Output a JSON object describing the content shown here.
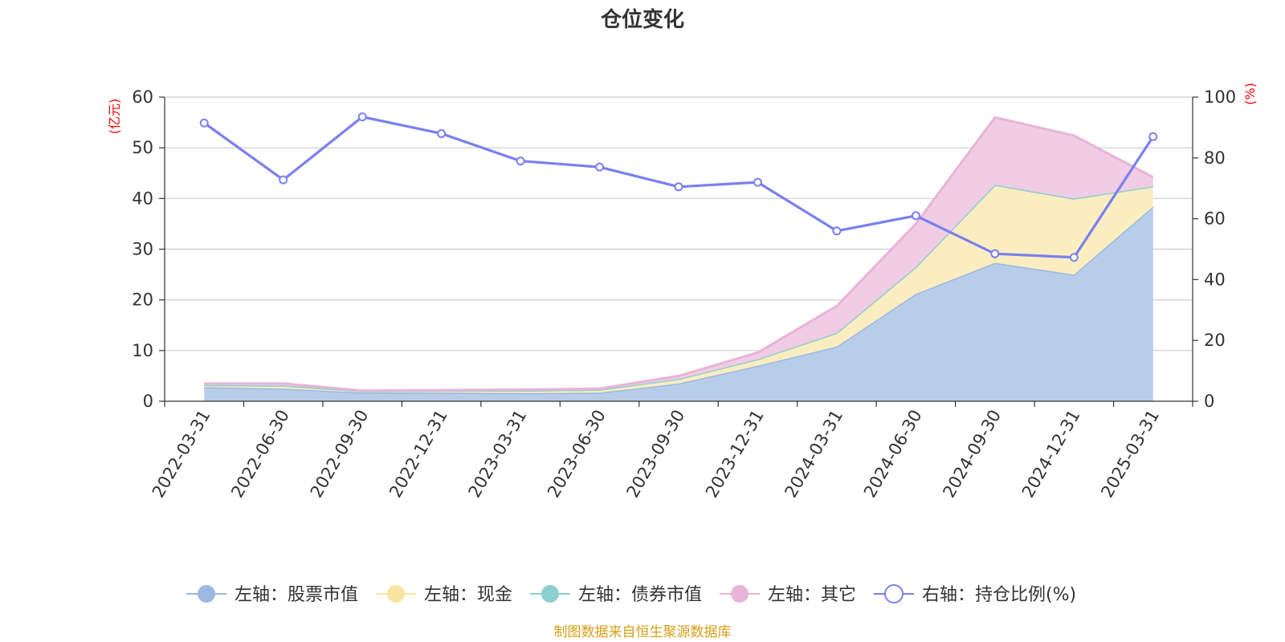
{
  "chart_data": {
    "type": "area",
    "title": "仓位变化",
    "left_unit": "(亿元)",
    "right_unit": "(%)",
    "categories": [
      "2022-03-31",
      "2022-06-30",
      "2022-09-30",
      "2022-12-31",
      "2023-03-31",
      "2023-06-30",
      "2023-09-30",
      "2023-12-31",
      "2024-03-31",
      "2024-06-30",
      "2024-09-30",
      "2024-12-31",
      "2025-03-31"
    ],
    "left_axis": {
      "min": 0,
      "max": 60,
      "ticks": [
        "0",
        "10",
        "20",
        "30",
        "40",
        "50",
        "60"
      ]
    },
    "right_axis": {
      "min": 0,
      "max": 100,
      "ticks": [
        "0",
        "20",
        "40",
        "60",
        "80",
        "100"
      ]
    },
    "series": [
      {
        "name": "左轴：股票市值",
        "key": "stock",
        "axis": "left",
        "stacked": true,
        "color": "#9db8e0",
        "fill": "#b8cdea",
        "values": [
          2.8,
          2.5,
          1.7,
          1.7,
          1.6,
          1.7,
          3.5,
          7.0,
          10.8,
          21.2,
          27.3,
          25.0,
          38.4
        ]
      },
      {
        "name": "左轴：现金",
        "key": "cash",
        "axis": "left",
        "stacked": true,
        "color": "#f7e4a0",
        "fill": "#faeec0",
        "values": [
          0.4,
          0.6,
          0.3,
          0.4,
          0.5,
          0.6,
          0.9,
          1.3,
          2.7,
          5.3,
          15.4,
          15.0,
          4.0
        ]
      },
      {
        "name": "左轴：债券市值",
        "key": "bond",
        "axis": "left",
        "stacked": true,
        "color": "#8ecfd0",
        "fill": "#a8dcdc",
        "values": [
          0,
          0,
          0,
          0,
          0,
          0,
          0,
          0,
          0,
          0,
          0,
          0,
          0
        ]
      },
      {
        "name": "左轴：其它",
        "key": "other",
        "axis": "left",
        "stacked": true,
        "color": "#e8b4d8",
        "fill": "#f0cde4",
        "values": [
          0.3,
          0.4,
          0.1,
          0.1,
          0.2,
          0.2,
          0.6,
          1.3,
          5.3,
          8.5,
          13.3,
          12.4,
          1.8
        ]
      },
      {
        "name": "右轴：持仓比例(%)",
        "key": "ratio",
        "axis": "right",
        "stacked": false,
        "color": "#7b7ff0",
        "fill": "none",
        "values": [
          91.5,
          72.8,
          93.5,
          88.0,
          79.0,
          77.0,
          70.5,
          72.0,
          56.0,
          61.0,
          48.5,
          47.3,
          87.0
        ]
      }
    ]
  },
  "source_text": "制图数据来自恒生聚源数据库"
}
